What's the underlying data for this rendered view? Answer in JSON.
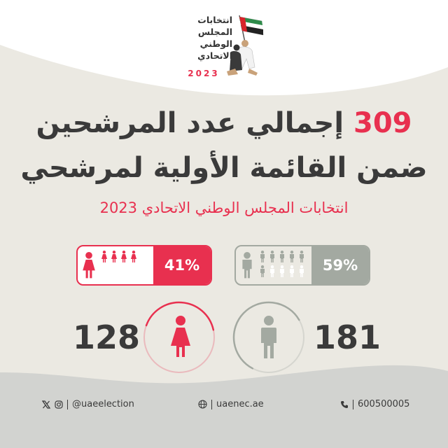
{
  "logo": {
    "lines": [
      "انتخابات",
      "المجلس",
      "الوطني",
      "الاتحادي"
    ],
    "year": "2023"
  },
  "headline": {
    "number": "309",
    "line1_text": "إجمالي عدد المرشحين",
    "line2": "ضمن القائمة الأولية لمرشحي"
  },
  "subtitle": "انتخابات المجلس الوطني الاتحادي 2023",
  "stats": {
    "female": {
      "percent_label": "41%",
      "percent": 41,
      "count": "128",
      "color": "#e8304f",
      "icon": "female-person-icon"
    },
    "male": {
      "percent_label": "59%",
      "percent": 59,
      "count": "181",
      "color": "#a3a9a1",
      "icon": "male-person-icon"
    }
  },
  "footer": {
    "social_handle": "@uaeelection",
    "website": "uaenec.ae",
    "phone": "600500005",
    "icons": [
      "x-icon",
      "instagram-icon",
      "globe-icon",
      "phone-icon"
    ]
  },
  "colors": {
    "accent": "#e8304f",
    "neutral": "#a3a9a1",
    "text": "#3a3a3a",
    "background": "#ebe9e2"
  }
}
